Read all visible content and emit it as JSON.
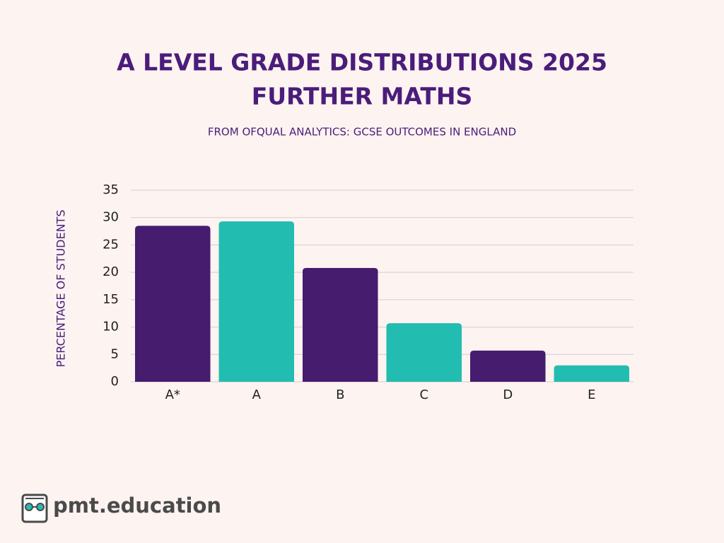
{
  "chart_data": {
    "type": "bar",
    "title": [
      "A LEVEL GRADE DISTRIBUTIONS 2025",
      "FURTHER MATHS"
    ],
    "subtitle": "FROM OFQUAL ANALYTICS: GCSE OUTCOMES IN ENGLAND",
    "y_label": "PERCENTAGE OF STUDENTS",
    "categories": [
      "A*",
      "A",
      "B",
      "C",
      "D",
      "E"
    ],
    "values": [
      28.5,
      29.3,
      20.8,
      10.7,
      5.7,
      3.0
    ],
    "colors": [
      "#461c6e",
      "#22bdb0",
      "#461c6e",
      "#22bdb0",
      "#461c6e",
      "#22bdb0"
    ],
    "ylim": [
      0,
      35
    ],
    "yticks": [
      0,
      5,
      10,
      15,
      20,
      25,
      30,
      35
    ],
    "grid": true
  },
  "brand": "pmt.education"
}
